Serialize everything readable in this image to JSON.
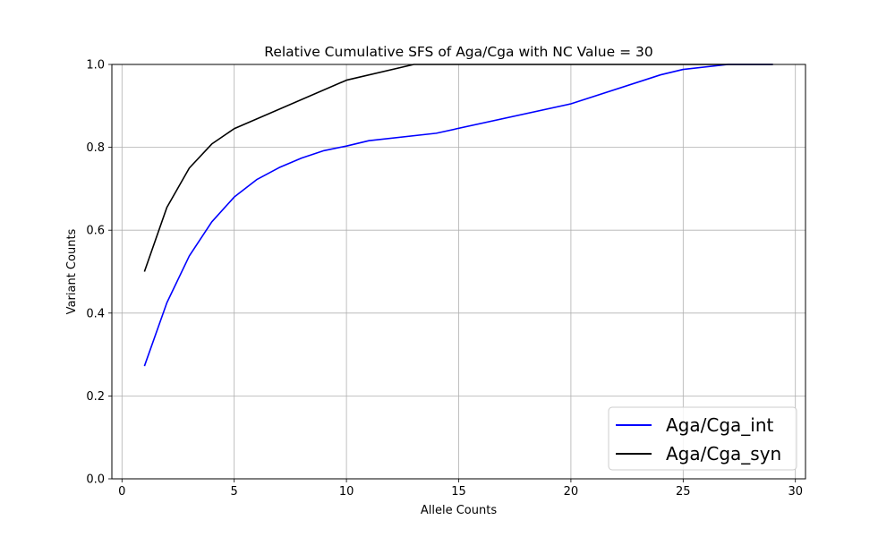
{
  "chart_data": {
    "type": "line",
    "title": "Relative Cumulative SFS of Aga/Cga with NC Value = 30",
    "xlabel": "Allele Counts",
    "ylabel": "Variant Counts",
    "xlim": [
      -0.45,
      30.45
    ],
    "ylim": [
      0.0,
      1.0
    ],
    "xticks": [
      0,
      5,
      10,
      15,
      20,
      25,
      30
    ],
    "yticks": [
      0.0,
      0.2,
      0.4,
      0.6,
      0.8,
      1.0
    ],
    "xtick_labels": [
      "0",
      "5",
      "10",
      "15",
      "20",
      "25",
      "30"
    ],
    "ytick_labels": [
      "0.0",
      "0.2",
      "0.4",
      "0.6",
      "0.8",
      "1.0"
    ],
    "grid": true,
    "legend_position": "bottom-right",
    "series": [
      {
        "name": "Aga/Cga_int",
        "color": "#0000ff",
        "x": [
          1,
          2,
          3,
          4,
          5,
          6,
          7,
          8,
          9,
          10,
          11,
          14,
          20,
          24,
          25,
          27,
          29
        ],
        "y": [
          0.272,
          0.425,
          0.538,
          0.62,
          0.68,
          0.722,
          0.751,
          0.774,
          0.792,
          0.803,
          0.816,
          0.834,
          0.905,
          0.975,
          0.988,
          1.0,
          1.0
        ]
      },
      {
        "name": "Aga/Cga_syn",
        "color": "#000000",
        "x": [
          1,
          2,
          3,
          4,
          5,
          10,
          13,
          29
        ],
        "y": [
          0.5,
          0.655,
          0.75,
          0.808,
          0.845,
          0.962,
          1.0,
          1.0
        ]
      }
    ]
  }
}
